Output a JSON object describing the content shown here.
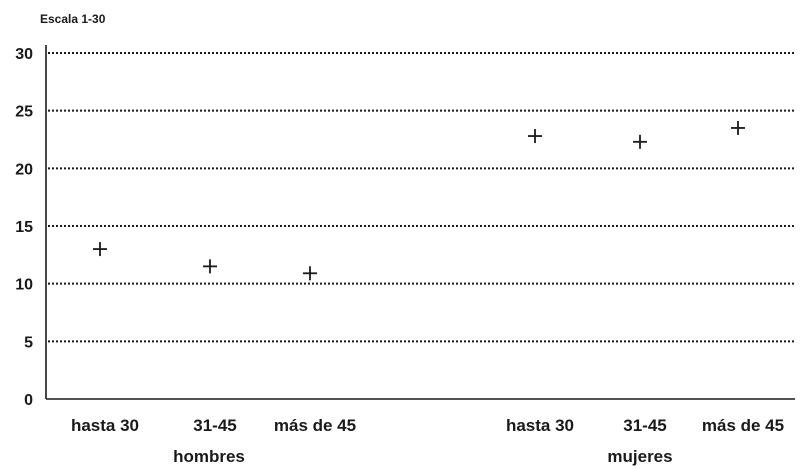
{
  "chart_data": {
    "type": "scatter",
    "unit_label": "Escala 1-30",
    "ylim": [
      0,
      30
    ],
    "yticks": [
      0,
      5,
      10,
      15,
      20,
      25,
      30
    ],
    "grid": true,
    "marker": "plus",
    "groups": [
      {
        "label": "hombres",
        "categories": [
          "hasta 30",
          "31-45",
          "más de 45"
        ],
        "values": [
          13.0,
          11.5,
          10.9
        ]
      },
      {
        "label": "mujeres",
        "categories": [
          "hasta 30",
          "31-45",
          "más de 45"
        ],
        "values": [
          22.8,
          22.3,
          23.5
        ]
      }
    ]
  }
}
